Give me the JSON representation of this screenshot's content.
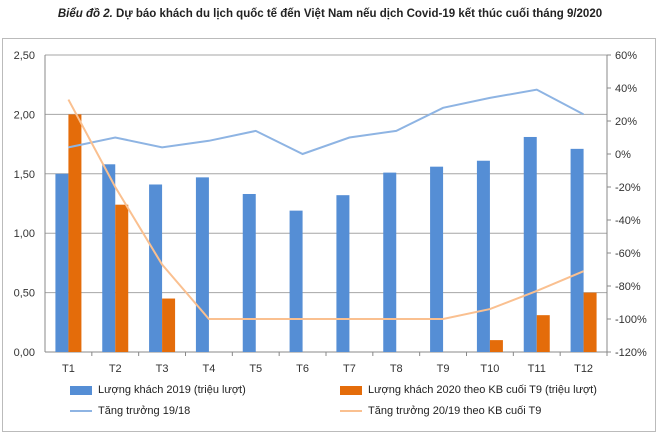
{
  "title_prefix": "Biểu đồ 2.",
  "title_rest": " Dự báo khách du lịch quốc tế đến Việt Nam nếu dịch Covid-19 kết thúc cuối tháng 9/2020",
  "chart_data": {
    "type": "bar",
    "title": "Biểu đồ 2. Dự báo khách du lịch quốc tế đến Việt Nam nếu dịch Covid-19 kết thúc cuối tháng 9/2020",
    "categories": [
      "T1",
      "T2",
      "T3",
      "T4",
      "T5",
      "T6",
      "T7",
      "T8",
      "T9",
      "T10",
      "T11",
      "T12"
    ],
    "y_left": {
      "range": [
        0,
        2.5
      ],
      "ticks": [
        "0,00",
        "0,50",
        "1,00",
        "1,50",
        "2,00",
        "2,50"
      ]
    },
    "y_right": {
      "range": [
        -120,
        60
      ],
      "ticks": [
        "-120%",
        "-100%",
        "-80%",
        "-60%",
        "-40%",
        "-20%",
        "0%",
        "20%",
        "40%",
        "60%"
      ]
    },
    "grid": true,
    "legend_position": "bottom",
    "series": [
      {
        "name": "Lượng khách 2019 (triệu lượt)",
        "type": "bar",
        "axis": "left",
        "color": "#558ed5",
        "values": [
          1.5,
          1.58,
          1.41,
          1.47,
          1.33,
          1.19,
          1.32,
          1.51,
          1.56,
          1.61,
          1.81,
          1.71
        ]
      },
      {
        "name": "Lượng khách 2020 theo KB cuối T9 (triệu lượt)",
        "type": "bar",
        "axis": "left",
        "color": "#e46c0a",
        "values": [
          2.0,
          1.24,
          0.45,
          0,
          0,
          0,
          0,
          0,
          0,
          0.1,
          0.31,
          0.5
        ]
      },
      {
        "name": "Tăng trưởng 19/18",
        "type": "line",
        "axis": "right",
        "color": "#8eb4e3",
        "values": [
          4,
          10,
          4,
          8,
          14,
          0,
          10,
          14,
          28,
          34,
          39,
          24
        ]
      },
      {
        "name": "Tăng trưởng 20/19 theo KB cuối T9",
        "type": "line",
        "axis": "right",
        "color": "#fac090",
        "values": [
          33,
          -20,
          -67,
          -100,
          -100,
          -100,
          -100,
          -100,
          -100,
          -94,
          -83,
          -71
        ]
      }
    ]
  }
}
